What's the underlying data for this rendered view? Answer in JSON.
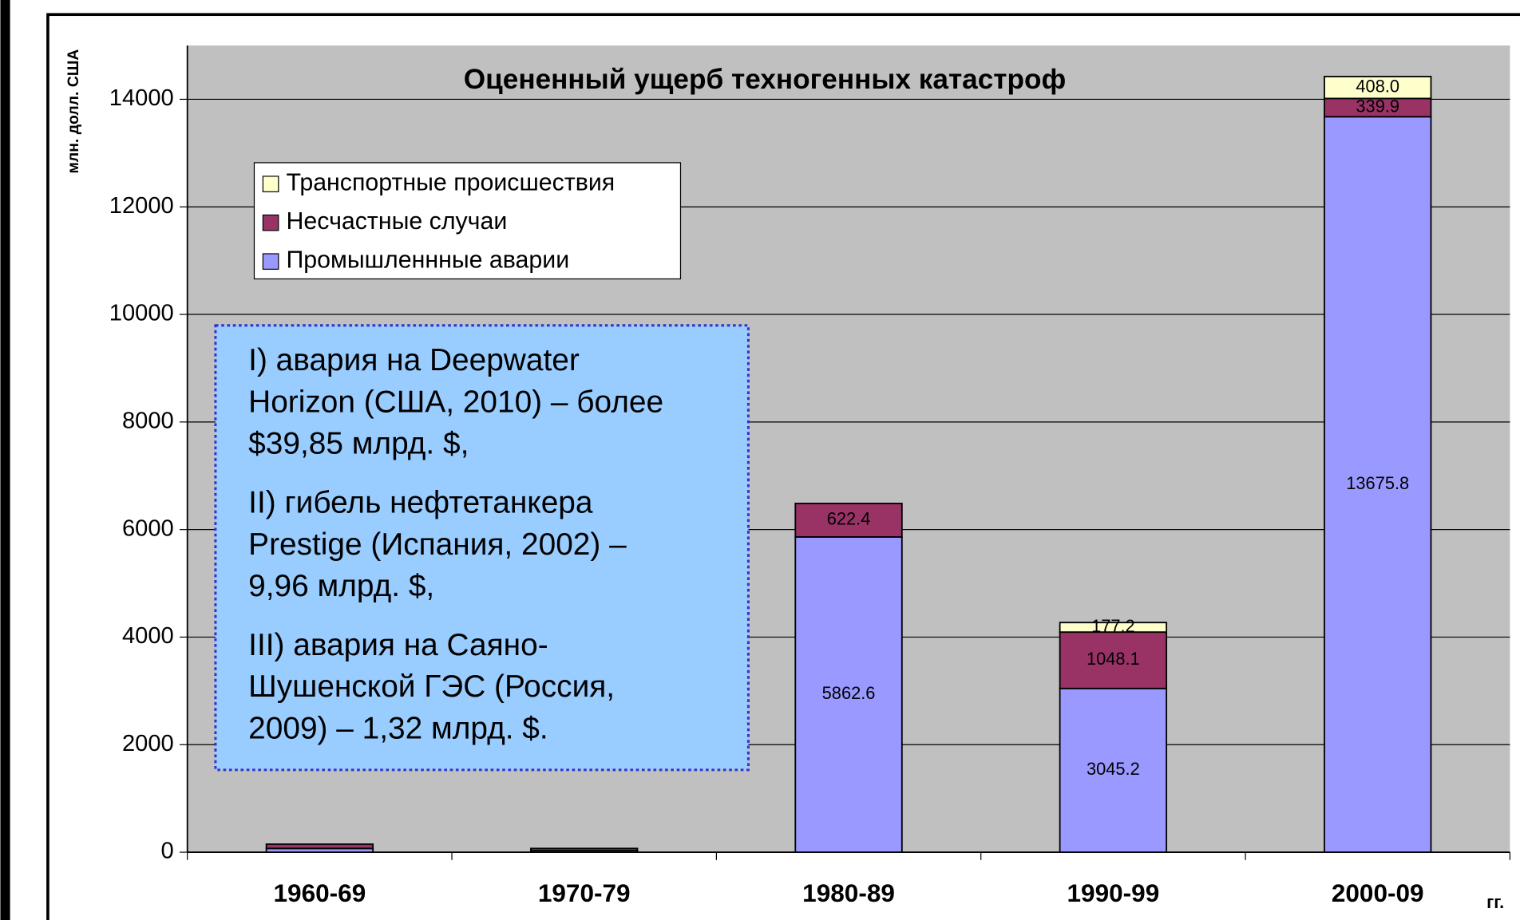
{
  "chart_data": {
    "type": "bar",
    "stacked": true,
    "title": "Оцененный ущерб техногенных катастроф",
    "y_label": "млн. долл. США",
    "x_label": "гг.",
    "categories": [
      "1960-69",
      "1970-79",
      "1980-89",
      "1990-99",
      "2000-09"
    ],
    "series": [
      {
        "name": "Промышленнные аварии",
        "color": "#9999ff",
        "values": [
          70,
          30,
          5862.6,
          3045.2,
          13675.8
        ],
        "value_labels": [
          null,
          null,
          "5862.6",
          "3045.2",
          "13675.8"
        ]
      },
      {
        "name": "Несчастные случаи",
        "color": "#993366",
        "values": [
          80,
          40,
          622.4,
          1048.1,
          339.9
        ],
        "value_labels": [
          null,
          null,
          "622.4",
          "1048.1",
          "339.9"
        ]
      },
      {
        "name": "Транспортные происшествия",
        "color": "#ffffcc",
        "values": [
          0,
          0,
          0,
          177.2,
          408.0
        ],
        "value_labels": [
          null,
          null,
          null,
          "177.2",
          "408.0"
        ]
      }
    ],
    "ylim": [
      0,
      15000
    ],
    "yticks": [
      0,
      2000,
      4000,
      6000,
      8000,
      10000,
      12000,
      14000
    ],
    "grid": true,
    "legend": "upper left",
    "annotation": [
      [
        "I) авария на Deepwater",
        "Horizon (США, 2010) – более",
        "$39,85 млрд. $,"
      ],
      [
        "II) гибель нефтетанкера",
        "Prestige (Испания, 2002) –",
        "9,96 млрд. $,"
      ],
      [
        "III) авария на Саяно-",
        "Шушенской ГЭС (Россия,",
        "2009) – 1,32 млрд. $."
      ]
    ]
  }
}
